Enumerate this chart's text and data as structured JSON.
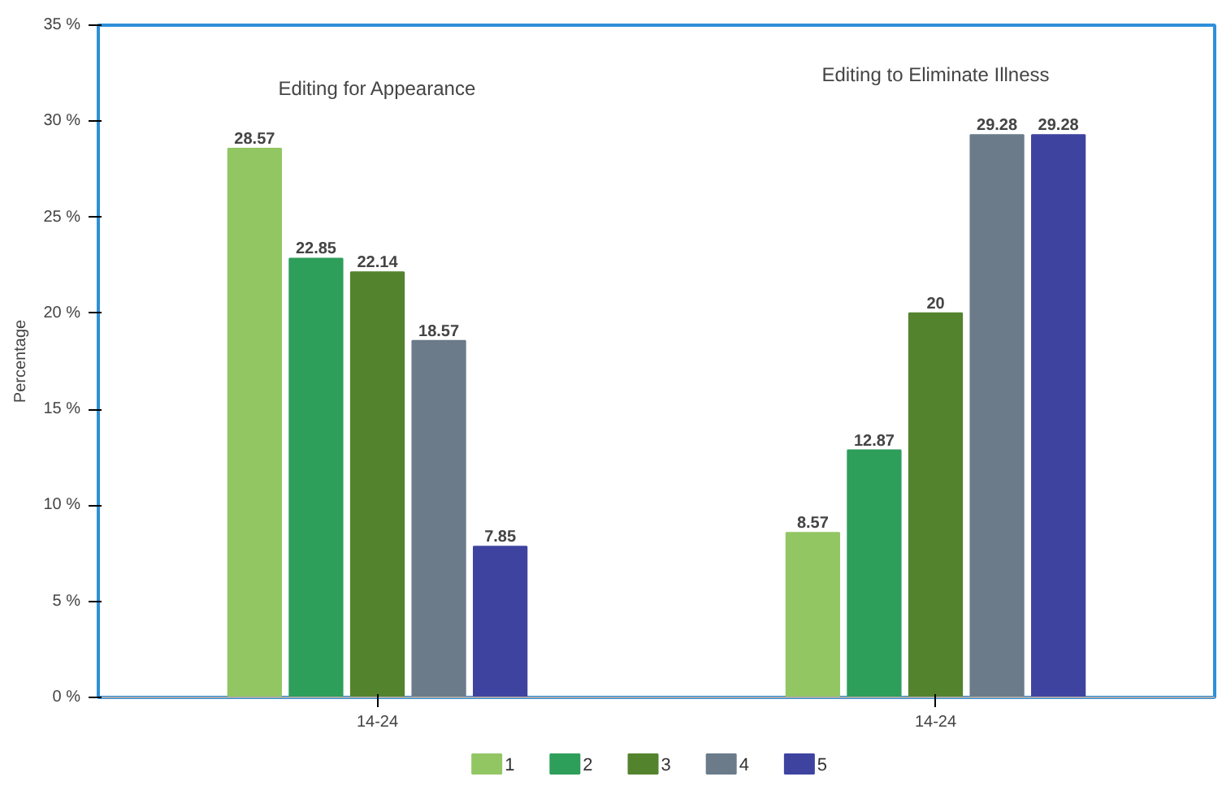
{
  "chart_data": {
    "type": "bar",
    "ylabel": "Percentage",
    "categories": [
      "14-24",
      "14-24"
    ],
    "series": [
      {
        "name": "1",
        "color": "#92c663",
        "values": [
          28.57,
          8.57
        ]
      },
      {
        "name": "2",
        "color": "#2e9e5b",
        "values": [
          22.85,
          12.87
        ]
      },
      {
        "name": "3",
        "color": "#54832e",
        "values": [
          22.14,
          20
        ]
      },
      {
        "name": "4",
        "color": "#6b7b8a",
        "values": [
          18.57,
          29.28
        ]
      },
      {
        "name": "5",
        "color": "#3f43a0",
        "values": [
          7.85,
          29.28
        ]
      }
    ],
    "ylim": [
      0,
      35
    ],
    "yticks": [
      {
        "value": 0,
        "label": "0 %"
      },
      {
        "value": 5,
        "label": "5 %"
      },
      {
        "value": 10,
        "label": "10 %"
      },
      {
        "value": 15,
        "label": "15 %"
      },
      {
        "value": 20,
        "label": "20 %"
      },
      {
        "value": 25,
        "label": "25 %"
      },
      {
        "value": 30,
        "label": "30 %"
      },
      {
        "value": 35,
        "label": "35 %"
      }
    ],
    "annotations": [
      "Editing for Appearance",
      "Editing to Eliminate Illness"
    ],
    "data_labels": true,
    "grid": false,
    "legend": "bottom"
  }
}
